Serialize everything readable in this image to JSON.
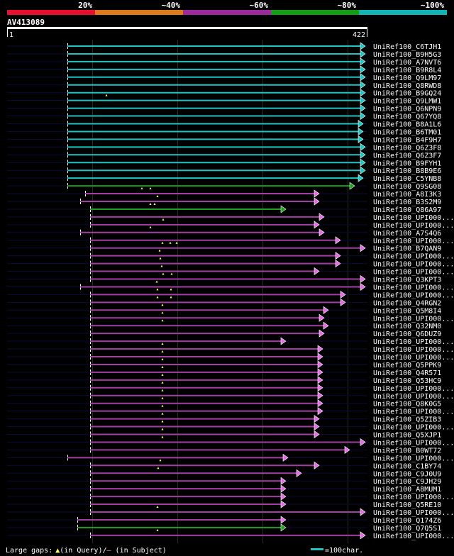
{
  "chart_data": {
    "type": "alignment-overview",
    "query_id": "AV413089",
    "query_start": "1",
    "query_end": "422",
    "query_length": 422,
    "identity_scale": {
      "labels": [
        "20%",
        "~40%",
        "~60%",
        "~80%",
        "~100%"
      ],
      "colors": [
        "#e8112d",
        "#e0791c",
        "#9c2a9c",
        "#149e14",
        "#12b4b4"
      ]
    },
    "hits": [
      {
        "id": "UniRef100_C6TJH1",
        "start": 95,
        "end": 515,
        "color": "#21c3c3",
        "arrow": "#21c3c3",
        "left_ext": [
          10,
          95
        ],
        "right_ext": null,
        "gaps": []
      },
      {
        "id": "UniRef100_B9H5G3",
        "start": 95,
        "end": 515,
        "color": "#21c3c3",
        "arrow": "#21c3c3",
        "left_ext": [
          10,
          95
        ],
        "right_ext": null,
        "gaps": []
      },
      {
        "id": "UniRef100_A7NVT6",
        "start": 95,
        "end": 515,
        "color": "#21c3c3",
        "arrow": "#21c3c3",
        "left_ext": [
          10,
          95
        ],
        "right_ext": null,
        "gaps": []
      },
      {
        "id": "UniRef100_B9R8L4",
        "start": 95,
        "end": 515,
        "color": "#21c3c3",
        "arrow": "#21c3c3",
        "left_ext": [
          10,
          95
        ],
        "right_ext": null,
        "gaps": []
      },
      {
        "id": "UniRef100_Q9LM97",
        "start": 95,
        "end": 515,
        "color": "#21c3c3",
        "arrow": "#21c3c3",
        "left_ext": [
          10,
          95
        ],
        "right_ext": null,
        "gaps": []
      },
      {
        "id": "UniRef100_Q8RWD8",
        "start": 95,
        "end": 515,
        "color": "#21c3c3",
        "arrow": "#21c3c3",
        "left_ext": [
          10,
          95
        ],
        "right_ext": null,
        "gaps": []
      },
      {
        "id": "UniRef100_B9GQ24",
        "start": 95,
        "end": 515,
        "color": "#21c3c3",
        "arrow": "#21c3c3",
        "left_ext": [
          10,
          95
        ],
        "right_ext": null,
        "gaps": []
      },
      {
        "id": "UniRef100_Q9LMW1",
        "start": 95,
        "end": 515,
        "color": "#21c3c3",
        "arrow": "#21c3c3",
        "left_ext": [
          10,
          95
        ],
        "right_ext": null,
        "gaps": [
          150
        ]
      },
      {
        "id": "UniRef100_Q6NPN9",
        "start": 95,
        "end": 515,
        "color": "#21c3c3",
        "arrow": "#21c3c3",
        "left_ext": [
          10,
          95
        ],
        "right_ext": null,
        "gaps": []
      },
      {
        "id": "UniRef100_Q67YQ8",
        "start": 95,
        "end": 515,
        "color": "#21c3c3",
        "arrow": "#21c3c3",
        "left_ext": [
          10,
          95
        ],
        "right_ext": null,
        "gaps": []
      },
      {
        "id": "UniRef100_B8A1L6",
        "start": 95,
        "end": 512,
        "color": "#21c3c3",
        "arrow": "#21c3c3",
        "left_ext": [
          10,
          95
        ],
        "right_ext": null,
        "gaps": []
      },
      {
        "id": "UniRef100_B6TM01",
        "start": 95,
        "end": 512,
        "color": "#21c3c3",
        "arrow": "#21c3c3",
        "left_ext": [
          10,
          95
        ],
        "right_ext": null,
        "gaps": []
      },
      {
        "id": "UniRef100_B4F9H7",
        "start": 95,
        "end": 512,
        "color": "#21c3c3",
        "arrow": "#21c3c3",
        "left_ext": [
          10,
          95
        ],
        "right_ext": null,
        "gaps": []
      },
      {
        "id": "UniRef100_Q6Z3F8",
        "start": 95,
        "end": 515,
        "color": "#21c3c3",
        "arrow": "#21c3c3",
        "left_ext": [
          10,
          95
        ],
        "right_ext": null,
        "gaps": []
      },
      {
        "id": "UniRef100_Q6Z3F7",
        "start": 95,
        "end": 515,
        "color": "#21c3c3",
        "arrow": "#21c3c3",
        "left_ext": [
          10,
          95
        ],
        "right_ext": null,
        "gaps": []
      },
      {
        "id": "UniRef100_B9FYH1",
        "start": 95,
        "end": 515,
        "color": "#21c3c3",
        "arrow": "#21c3c3",
        "left_ext": [
          10,
          95
        ],
        "right_ext": null,
        "gaps": []
      },
      {
        "id": "UniRef100_B8B9E6",
        "start": 95,
        "end": 515,
        "color": "#21c3c3",
        "arrow": "#21c3c3",
        "left_ext": [
          10,
          95
        ],
        "right_ext": null,
        "gaps": []
      },
      {
        "id": "UniRef100_C5YNB8",
        "start": 95,
        "end": 512,
        "color": "#21c3c3",
        "arrow": "#21c3c3",
        "left_ext": [
          10,
          95
        ],
        "right_ext": null,
        "gaps": []
      },
      {
        "id": "UniRef100_Q9SG08",
        "start": 95,
        "end": 500,
        "color": "#1f9e1f",
        "arrow": "#1f9e1f",
        "left_ext": [
          10,
          95
        ],
        "right_ext": null,
        "gaps": []
      },
      {
        "id": "UniRef100_A8I3K3",
        "start": 120,
        "end": 450,
        "color": "#a43ea4",
        "arrow": "#e070e0",
        "left_ext": null,
        "right_ext": null,
        "gaps": [
          200,
          212
        ]
      },
      {
        "id": "UniRef100_B3S2M9",
        "start": 113,
        "end": 450,
        "color": "#a43ea4",
        "arrow": "#e070e0",
        "left_ext": null,
        "right_ext": null,
        "gaps": [
          222
        ]
      },
      {
        "id": "UniRef100_Q86A97",
        "start": 127,
        "end": 403,
        "color": "#1f9e1f",
        "arrow": "#1f9e1f",
        "left_ext": null,
        "right_ext": null,
        "gaps": [
          212,
          218
        ]
      },
      {
        "id": "UniRef100_UPI000...",
        "start": 127,
        "end": 457,
        "color": "#a43ea4",
        "arrow": "#e070e0",
        "left_ext": null,
        "right_ext": null,
        "gaps": []
      },
      {
        "id": "UniRef100_UPI000...",
        "start": 127,
        "end": 450,
        "color": "#a43ea4",
        "arrow": "#e070e0",
        "left_ext": null,
        "right_ext": null,
        "gaps": [
          230
        ]
      },
      {
        "id": "UniRef100_A7S4Q6",
        "start": 113,
        "end": 457,
        "color": "#a43ea4",
        "arrow": "#e070e0",
        "left_ext": null,
        "right_ext": null,
        "gaps": [
          212
        ]
      },
      {
        "id": "UniRef100_UPI000...",
        "start": 127,
        "end": 480,
        "color": "#a43ea4",
        "arrow": "#e070e0",
        "left_ext": null,
        "right_ext": null,
        "gaps": []
      },
      {
        "id": "UniRef100_B7QAN9",
        "start": 127,
        "end": 515,
        "color": "#a43ea4",
        "arrow": "#e070e0",
        "left_ext": null,
        "right_ext": null,
        "gaps": [
          229,
          240,
          249
        ]
      },
      {
        "id": "UniRef100_UPI000...",
        "start": 127,
        "end": 480,
        "color": "#a43ea4",
        "arrow": "#e070e0",
        "left_ext": null,
        "right_ext": null,
        "gaps": [
          225
        ]
      },
      {
        "id": "UniRef100_UPI000...",
        "start": 127,
        "end": 480,
        "color": "#a43ea4",
        "arrow": "#e070e0",
        "left_ext": null,
        "right_ext": null,
        "gaps": [
          226
        ]
      },
      {
        "id": "UniRef100_UPI000...",
        "start": 127,
        "end": 450,
        "color": "#a43ea4",
        "arrow": "#e070e0",
        "left_ext": null,
        "right_ext": null,
        "gaps": [
          228
        ]
      },
      {
        "id": "UniRef100_Q3KPT3",
        "start": 127,
        "end": 515,
        "color": "#a43ea4",
        "arrow": "#e070e0",
        "left_ext": null,
        "right_ext": null,
        "gaps": [
          230,
          242
        ]
      },
      {
        "id": "UniRef100_UPI000...",
        "start": 113,
        "end": 515,
        "color": "#a43ea4",
        "arrow": "#e070e0",
        "left_ext": null,
        "right_ext": null,
        "gaps": [
          221
        ]
      },
      {
        "id": "UniRef100_UPI000...",
        "start": 127,
        "end": 487,
        "color": "#a43ea4",
        "arrow": "#e070e0",
        "left_ext": null,
        "right_ext": null,
        "gaps": [
          222,
          241
        ]
      },
      {
        "id": "UniRef100_Q4RGN2",
        "start": 127,
        "end": 487,
        "color": "#a43ea4",
        "arrow": "#e070e0",
        "left_ext": null,
        "right_ext": null,
        "gaps": [
          222,
          241
        ]
      },
      {
        "id": "UniRef100_Q5M8I4",
        "start": 127,
        "end": 463,
        "color": "#a43ea4",
        "arrow": "#e070e0",
        "left_ext": null,
        "right_ext": null,
        "gaps": [
          229
        ]
      },
      {
        "id": "UniRef100_UPI000...",
        "start": 127,
        "end": 457,
        "color": "#a43ea4",
        "arrow": "#e070e0",
        "left_ext": null,
        "right_ext": null,
        "gaps": [
          229
        ]
      },
      {
        "id": "UniRef100_Q32NM0",
        "start": 127,
        "end": 463,
        "color": "#a43ea4",
        "arrow": "#e070e0",
        "left_ext": null,
        "right_ext": null,
        "gaps": [
          229
        ]
      },
      {
        "id": "UniRef100_Q6DUZ9",
        "start": 127,
        "end": 457,
        "color": "#a43ea4",
        "arrow": "#e070e0",
        "left_ext": null,
        "right_ext": null,
        "gaps": []
      },
      {
        "id": "UniRef100_UPI000...",
        "start": 127,
        "end": 403,
        "color": "#a43ea4",
        "arrow": "#e070e0",
        "left_ext": null,
        "right_ext": null,
        "gaps": []
      },
      {
        "id": "UniRef100_UPI000...",
        "start": 127,
        "end": 455,
        "color": "#a43ea4",
        "arrow": "#e070e0",
        "left_ext": null,
        "right_ext": null,
        "gaps": [
          229
        ]
      },
      {
        "id": "UniRef100_UPI000...",
        "start": 127,
        "end": 455,
        "color": "#a43ea4",
        "arrow": "#e070e0",
        "left_ext": null,
        "right_ext": null,
        "gaps": [
          229
        ]
      },
      {
        "id": "UniRef100_Q5PPK9",
        "start": 127,
        "end": 455,
        "color": "#a43ea4",
        "arrow": "#e070e0",
        "left_ext": null,
        "right_ext": null,
        "gaps": [
          229
        ]
      },
      {
        "id": "UniRef100_Q4R571",
        "start": 127,
        "end": 455,
        "color": "#a43ea4",
        "arrow": "#e070e0",
        "left_ext": null,
        "right_ext": null,
        "gaps": [
          229
        ]
      },
      {
        "id": "UniRef100_Q53HC9",
        "start": 127,
        "end": 455,
        "color": "#a43ea4",
        "arrow": "#e070e0",
        "left_ext": null,
        "right_ext": null,
        "gaps": [
          229
        ]
      },
      {
        "id": "UniRef100_UPI000...",
        "start": 127,
        "end": 455,
        "color": "#a43ea4",
        "arrow": "#e070e0",
        "left_ext": null,
        "right_ext": null,
        "gaps": [
          229
        ]
      },
      {
        "id": "UniRef100_UPI000...",
        "start": 127,
        "end": 455,
        "color": "#a43ea4",
        "arrow": "#e070e0",
        "left_ext": null,
        "right_ext": null,
        "gaps": [
          229
        ]
      },
      {
        "id": "UniRef100_Q8K0G5",
        "start": 127,
        "end": 455,
        "color": "#a43ea4",
        "arrow": "#e070e0",
        "left_ext": null,
        "right_ext": null,
        "gaps": [
          229
        ]
      },
      {
        "id": "UniRef100_UPI000...",
        "start": 127,
        "end": 455,
        "color": "#a43ea4",
        "arrow": "#e070e0",
        "left_ext": null,
        "right_ext": null,
        "gaps": [
          229
        ]
      },
      {
        "id": "UniRef100_Q5ZIB3",
        "start": 127,
        "end": 450,
        "color": "#a43ea4",
        "arrow": "#e070e0",
        "left_ext": null,
        "right_ext": null,
        "gaps": [
          229
        ]
      },
      {
        "id": "UniRef100_UPI000...",
        "start": 127,
        "end": 450,
        "color": "#a43ea4",
        "arrow": "#e070e0",
        "left_ext": null,
        "right_ext": null,
        "gaps": [
          229
        ]
      },
      {
        "id": "UniRef100_Q5XJP1",
        "start": 127,
        "end": 450,
        "color": "#a43ea4",
        "arrow": "#e070e0",
        "left_ext": null,
        "right_ext": null,
        "gaps": [
          229
        ]
      },
      {
        "id": "UniRef100_UPI000...",
        "start": 127,
        "end": 515,
        "color": "#a43ea4",
        "arrow": "#e070e0",
        "left_ext": null,
        "right_ext": null,
        "gaps": [
          229
        ]
      },
      {
        "id": "UniRef100_B0WT72",
        "start": 127,
        "end": 493,
        "color": "#a43ea4",
        "arrow": "#e070e0",
        "left_ext": null,
        "right_ext": null,
        "gaps": []
      },
      {
        "id": "UniRef100_UPI000...",
        "start": 95,
        "end": 406,
        "color": "#a43ea4",
        "arrow": "#e070e0",
        "left_ext": null,
        "right_ext": null,
        "gaps": []
      },
      {
        "id": "UniRef100_C1BY74",
        "start": 127,
        "end": 450,
        "color": "#a43ea4",
        "arrow": "#e070e0",
        "left_ext": null,
        "right_ext": null,
        "gaps": [
          226
        ]
      },
      {
        "id": "UniRef100_C9J0U9",
        "start": 127,
        "end": 425,
        "color": "#a43ea4",
        "arrow": "#e070e0",
        "left_ext": null,
        "right_ext": null,
        "gaps": [
          223
        ]
      },
      {
        "id": "UniRef100_C9JH29",
        "start": 127,
        "end": 403,
        "color": "#a43ea4",
        "arrow": "#e070e0",
        "left_ext": null,
        "right_ext": null,
        "gaps": []
      },
      {
        "id": "UniRef100_A8MUM1",
        "start": 127,
        "end": 403,
        "color": "#a43ea4",
        "arrow": "#e070e0",
        "left_ext": null,
        "right_ext": null,
        "gaps": []
      },
      {
        "id": "UniRef100_UPI000...",
        "start": 127,
        "end": 403,
        "color": "#a43ea4",
        "arrow": "#e070e0",
        "left_ext": null,
        "right_ext": null,
        "gaps": []
      },
      {
        "id": "UniRef100_Q5RE10",
        "start": 127,
        "end": 403,
        "color": "#a43ea4",
        "arrow": "#e070e0",
        "left_ext": null,
        "right_ext": null,
        "gaps": []
      },
      {
        "id": "UniRef100_UPI000...",
        "start": 127,
        "end": 515,
        "color": "#a43ea4",
        "arrow": "#e070e0",
        "left_ext": null,
        "right_ext": null,
        "gaps": [
          222
        ]
      },
      {
        "id": "UniRef100_Q174Z6",
        "start": 109,
        "end": 403,
        "color": "#a43ea4",
        "arrow": "#e070e0",
        "left_ext": null,
        "right_ext": null,
        "gaps": []
      },
      {
        "id": "UniRef100_Q7Q5S1",
        "start": 109,
        "end": 403,
        "color": "#1f9e1f",
        "arrow": "#1f9e1f",
        "left_ext": null,
        "right_ext": null,
        "gaps": []
      },
      {
        "id": "UniRef100_UPI000...",
        "start": 127,
        "end": 515,
        "color": "#a43ea4",
        "arrow": "#e070e0",
        "left_ext": null,
        "right_ext": null,
        "gaps": [
          222
        ]
      }
    ]
  },
  "footer": {
    "gaps_prefix": "Large gaps:",
    "gaps_query": "(in Query)/",
    "gaps_dash": "–",
    "gaps_subject": " (in Subject)",
    "scale_text": "=100char."
  }
}
